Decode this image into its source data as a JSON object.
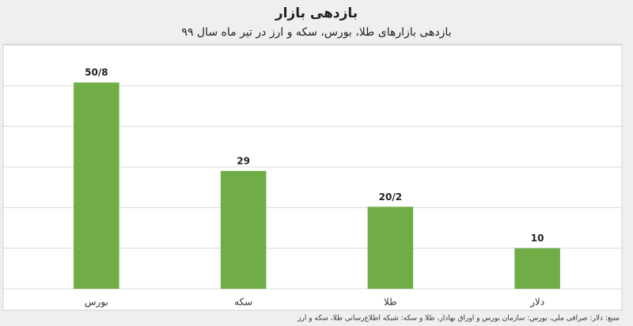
{
  "chart_data": {
    "type": "bar",
    "title": "بازدهی بازار",
    "subtitle": "بازدهی بازارهای طلا، بورس، سکه و ارز در تیر ماه سال ۹۹",
    "categories": [
      "بورس",
      "سکه",
      "طلا",
      "دلار"
    ],
    "values": [
      50.8,
      29,
      20.2,
      10
    ],
    "value_labels": [
      "50/8",
      "29",
      "20/2",
      "10"
    ],
    "color": "#70ad47",
    "ylim": [
      0,
      60
    ],
    "yticks": [
      0,
      10,
      20,
      30,
      40,
      50,
      60
    ],
    "grid": true,
    "note": "منبع: دلار: صرافی ملی، بورس: سازمان بورس و اوراق بهادار، طلا و سکه: شبکه اطلاع‌رسانی طلا، سکه و ارز"
  }
}
